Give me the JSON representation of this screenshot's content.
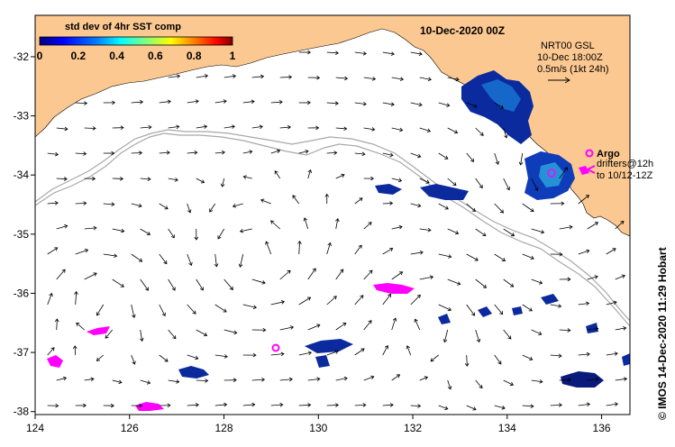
{
  "map": {
    "date_title": "10-Dec-2020 00Z",
    "credit": "© IMOS 14-Dec-2020 11:29 Hobart",
    "colorbar": {
      "title": "std dev of 4hr SST comp",
      "ticks": [
        "0",
        "0.2",
        "0.4",
        "0.6",
        "0.8",
        "1"
      ],
      "colors": [
        "#00007f",
        "#0000ff",
        "#007fff",
        "#00ffff",
        "#7fff7f",
        "#ffff00",
        "#ff7f00",
        "#ff0000",
        "#7f0000"
      ]
    },
    "legend": {
      "source": "NRT00 GSL",
      "time": "10-Dec 18:00Z",
      "scale": "0.5m/s (1kt 24h)",
      "argo_label": "Argo",
      "drifters_line1": "drifters@12h",
      "drifters_line2": "to 10/12-12Z"
    },
    "x_ticks": [
      "124",
      "126",
      "128",
      "130",
      "132",
      "134",
      "136"
    ],
    "y_ticks": [
      "-32",
      "-33",
      "-34",
      "-35",
      "-36",
      "-37",
      "-38"
    ],
    "colors": {
      "land": "#fcc891",
      "ocean": "#ffffff",
      "isobath": "#a8a8a8",
      "argo": "#ff00ff",
      "arrow": "#000000"
    }
  }
}
